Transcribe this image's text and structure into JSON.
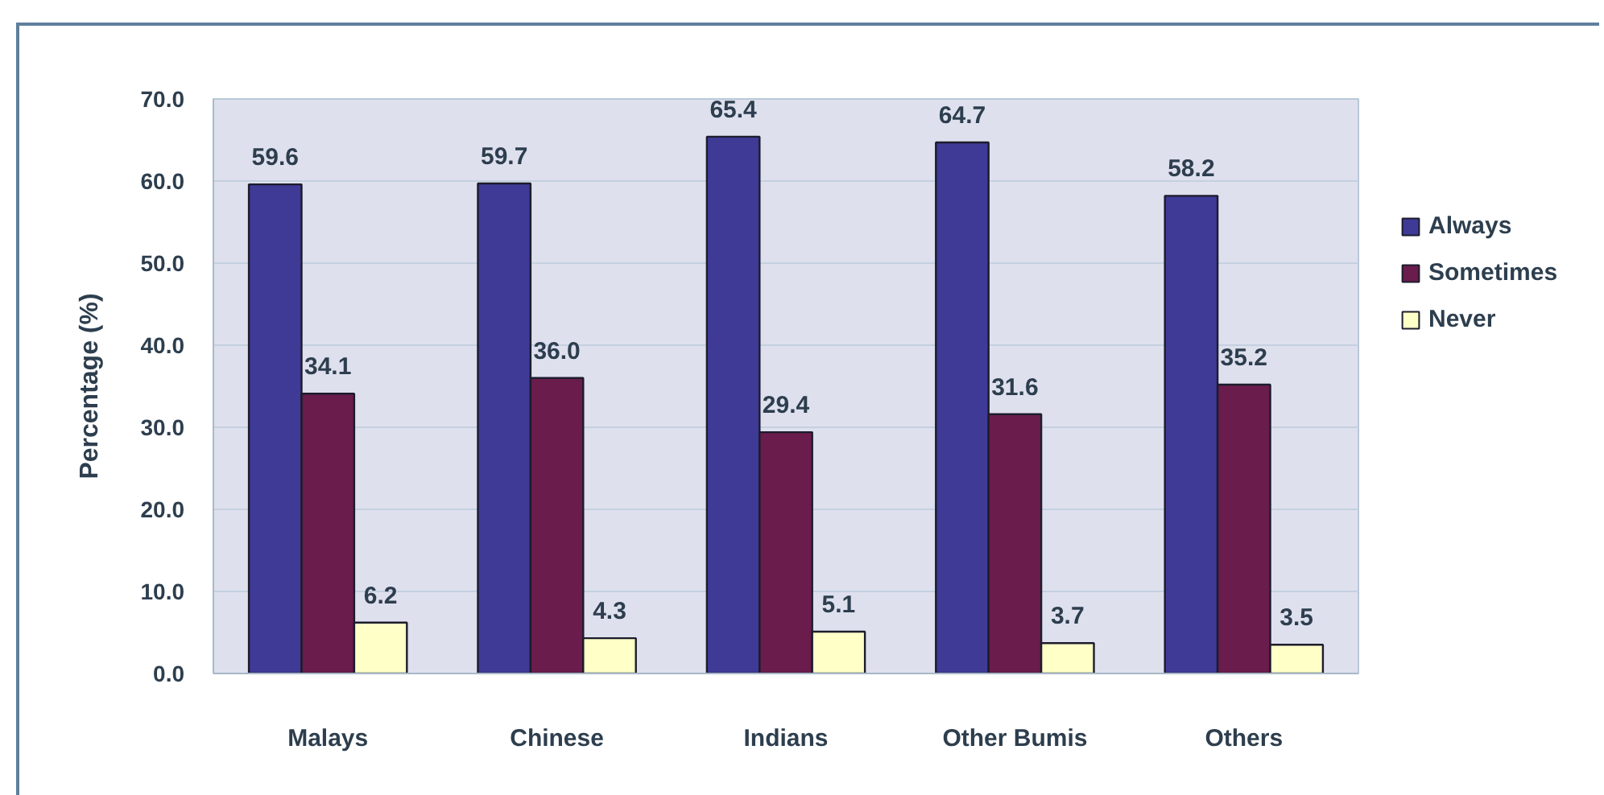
{
  "chart_data": {
    "type": "bar",
    "ylabel": "Percentage (%)",
    "categories": [
      "Malays",
      "Chinese",
      "Indians",
      "Other Bumis",
      "Others"
    ],
    "series": [
      {
        "name": "Always",
        "color": "#3e3a96",
        "values": [
          59.6,
          59.7,
          65.4,
          64.7,
          58.2
        ],
        "value_labels": [
          "59.6",
          "59.7",
          "65.4",
          "64.7",
          "58.2"
        ]
      },
      {
        "name": "Sometimes",
        "color": "#6a1c4c",
        "values": [
          34.1,
          36.0,
          29.4,
          31.6,
          35.2
        ],
        "value_labels": [
          "34.1",
          "36.0",
          "29.4",
          "31.6",
          "35.2"
        ]
      },
      {
        "name": "Never",
        "color": "#ffffc8",
        "values": [
          6.2,
          4.3,
          5.1,
          3.7,
          3.5
        ],
        "value_labels": [
          "6.2",
          "4.3",
          "5.1",
          "3.7",
          "3.5"
        ]
      }
    ],
    "ylim": [
      0,
      70
    ],
    "yticks": [
      {
        "value": 0,
        "label": "0.0"
      },
      {
        "value": 10,
        "label": "10.0"
      },
      {
        "value": 20,
        "label": "20.0"
      },
      {
        "value": 30,
        "label": "30.0"
      },
      {
        "value": 40,
        "label": "40.0"
      },
      {
        "value": 50,
        "label": "50.0"
      },
      {
        "value": 60,
        "label": "60.0"
      },
      {
        "value": 70,
        "label": "70.0"
      }
    ],
    "grid": "y",
    "legend": "right"
  }
}
